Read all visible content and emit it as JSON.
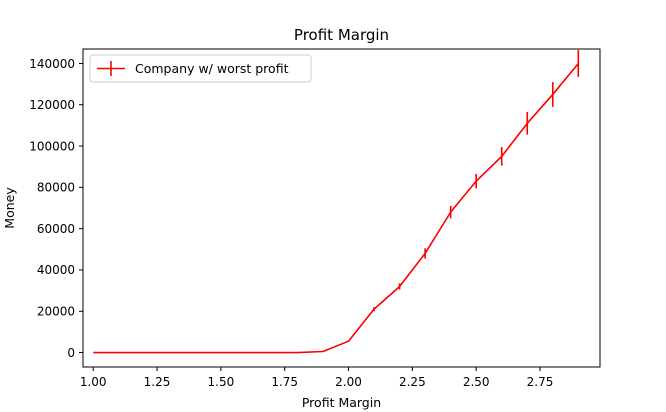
{
  "chart_data": {
    "type": "line",
    "title": "Profit Margin",
    "xlabel": "Profit Margin",
    "ylabel": "Money",
    "xlim": [
      0.96,
      2.985
    ],
    "ylim": [
      -7000,
      147000
    ],
    "xticks": [
      1.0,
      1.25,
      1.5,
      1.75,
      2.0,
      2.25,
      2.5,
      2.75
    ],
    "xtick_labels": [
      "1.00",
      "1.25",
      "1.50",
      "1.75",
      "2.00",
      "2.25",
      "2.50",
      "2.75"
    ],
    "yticks": [
      0,
      20000,
      40000,
      60000,
      80000,
      100000,
      120000,
      140000
    ],
    "ytick_labels": [
      "0",
      "20000",
      "40000",
      "60000",
      "80000",
      "100000",
      "120000",
      "140000"
    ],
    "grid": false,
    "legend_position": "top-left",
    "series": [
      {
        "name": "Company w/ worst profit",
        "color": "#ff0000",
        "x": [
          1.0,
          1.1,
          1.2,
          1.3,
          1.4,
          1.5,
          1.6,
          1.7,
          1.8,
          1.9,
          2.0,
          2.1,
          2.2,
          2.3,
          2.4,
          2.5,
          2.6,
          2.7,
          2.8,
          2.9
        ],
        "y": [
          0,
          0,
          0,
          0,
          0,
          0,
          0,
          0,
          0,
          500,
          5500,
          21000,
          32000,
          48000,
          68000,
          83000,
          95000,
          111000,
          125000,
          140000
        ],
        "yerr": [
          0,
          0,
          0,
          0,
          0,
          0,
          0,
          0,
          0,
          0,
          0,
          1000,
          1500,
          2500,
          3000,
          3500,
          4500,
          5500,
          6000,
          6500
        ]
      }
    ]
  }
}
